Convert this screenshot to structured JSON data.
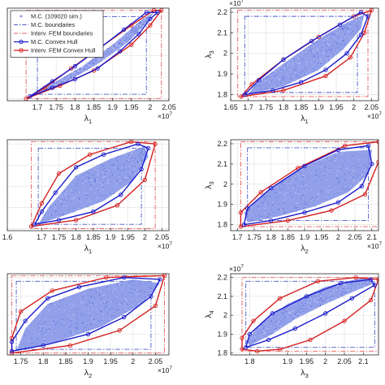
{
  "legend": {
    "placement": "top-left",
    "entries": [
      {
        "label": "M.C. (109020 sim.)",
        "style": "points",
        "color": "#7f8fe6"
      },
      {
        "label": "M.C. boundaries",
        "style": "dash-dot",
        "color": "#4a58c8"
      },
      {
        "label": "Interv. FEM boundaries",
        "style": "dash-dot",
        "color": "#e05a5a"
      },
      {
        "label": "M.C. Convex Hull",
        "style": "line-circle",
        "color": "#1a1acc"
      },
      {
        "label": "Interv. FEM Convex Hull",
        "style": "line-circle",
        "color": "#d42020"
      }
    ]
  },
  "colors": {
    "cloud": "#7f8fe6",
    "mc_hull": "#1a1acc",
    "fem_hull": "#d42020",
    "mc_box": "#4a58c8",
    "fem_box": "#e05a5a",
    "grid": "#e3e3e3"
  },
  "chart_data": [
    {
      "id": "p1",
      "type": "scatter",
      "xlabel": "λ1",
      "ylabel": "",
      "x_exponent": "×10^7",
      "y_exponent": "",
      "xlim": [
        1.62,
        2.05
      ],
      "ylim": [
        1.79,
        2.22
      ],
      "xticks": [
        "1.7",
        "1.75",
        "1.8",
        "1.85",
        "1.9",
        "1.95",
        "2",
        "2.05"
      ],
      "yticks": [],
      "mc_box": [
        1.7,
        1.99,
        1.82,
        2.18
      ],
      "fem_box": [
        1.67,
        2.03,
        1.8,
        2.21
      ],
      "cloud": [
        [
          1.69,
          1.82
        ],
        [
          1.78,
          1.88
        ],
        [
          1.86,
          1.96
        ],
        [
          1.94,
          2.06
        ],
        [
          1.99,
          2.15
        ],
        [
          2.01,
          2.2
        ],
        [
          1.98,
          2.17
        ],
        [
          1.9,
          2.05
        ],
        [
          1.82,
          1.95
        ],
        [
          1.74,
          1.87
        ]
      ],
      "mc_hull": [
        [
          1.68,
          1.81
        ],
        [
          1.74,
          1.85
        ],
        [
          1.8,
          1.89
        ],
        [
          1.86,
          1.94
        ],
        [
          1.92,
          2.02
        ],
        [
          1.97,
          2.1
        ],
        [
          2.0,
          2.17
        ],
        [
          2.02,
          2.2
        ],
        [
          1.99,
          2.2
        ],
        [
          1.93,
          2.12
        ],
        [
          1.87,
          2.04
        ],
        [
          1.8,
          1.95
        ],
        [
          1.74,
          1.88
        ]
      ],
      "fem_hull": [
        [
          1.67,
          1.8
        ],
        [
          1.76,
          1.86
        ],
        [
          1.85,
          1.93
        ],
        [
          1.95,
          2.05
        ],
        [
          2.0,
          2.14
        ],
        [
          2.03,
          2.21
        ],
        [
          2.01,
          2.21
        ],
        [
          1.95,
          2.14
        ],
        [
          1.87,
          2.04
        ],
        [
          1.79,
          1.94
        ],
        [
          1.72,
          1.85
        ]
      ]
    },
    {
      "id": "p2",
      "type": "scatter",
      "xlabel": "λ1",
      "ylabel": "λ3",
      "x_exponent": "×10^7",
      "y_exponent": "×10^7",
      "xlim": [
        1.65,
        2.07
      ],
      "ylim": [
        1.77,
        2.22
      ],
      "xticks": [
        "1.65",
        "1.7",
        "1.75",
        "1.8",
        "1.85",
        "1.9",
        "1.95",
        "2",
        "2.05"
      ],
      "yticks": [
        "1.8",
        "1.9",
        "2",
        "2.1",
        "2.2"
      ],
      "mc_box": [
        1.69,
        2.01,
        1.81,
        2.18
      ],
      "fem_box": [
        1.67,
        2.04,
        1.79,
        2.21
      ],
      "cloud": [
        [
          1.7,
          1.8
        ],
        [
          1.8,
          1.84
        ],
        [
          1.9,
          1.92
        ],
        [
          1.97,
          2.02
        ],
        [
          2.02,
          2.12
        ],
        [
          2.03,
          2.19
        ],
        [
          1.98,
          2.15
        ],
        [
          1.9,
          2.07
        ],
        [
          1.8,
          1.95
        ],
        [
          1.72,
          1.85
        ]
      ],
      "mc_hull": [
        [
          1.69,
          1.8
        ],
        [
          1.77,
          1.82
        ],
        [
          1.85,
          1.86
        ],
        [
          1.92,
          1.92
        ],
        [
          1.98,
          2.0
        ],
        [
          2.02,
          2.09
        ],
        [
          2.04,
          2.18
        ],
        [
          2.02,
          2.2
        ],
        [
          1.96,
          2.14
        ],
        [
          1.88,
          2.06
        ],
        [
          1.8,
          1.97
        ],
        [
          1.73,
          1.87
        ]
      ],
      "fem_hull": [
        [
          1.68,
          1.79
        ],
        [
          1.8,
          1.82
        ],
        [
          1.92,
          1.89
        ],
        [
          1.99,
          1.98
        ],
        [
          2.03,
          2.1
        ],
        [
          2.05,
          2.21
        ],
        [
          2.0,
          2.18
        ],
        [
          1.9,
          2.08
        ],
        [
          1.8,
          1.97
        ],
        [
          1.71,
          1.85
        ]
      ]
    },
    {
      "id": "p3",
      "type": "scatter",
      "xlabel": "λ1",
      "ylabel": "",
      "x_exponent": "×10^7",
      "y_exponent": "",
      "xlim": [
        1.6,
        2.07
      ],
      "ylim": [
        1.79,
        2.22
      ],
      "xticks": [
        "1.6",
        "1.7",
        "1.75",
        "1.8",
        "1.85",
        "1.9",
        "1.95",
        "2",
        "2.05"
      ],
      "yticks": [],
      "mc_box": [
        1.69,
        1.99,
        1.82,
        2.18
      ],
      "fem_box": [
        1.67,
        2.03,
        1.8,
        2.21
      ],
      "cloud": [
        [
          1.69,
          1.82
        ],
        [
          1.78,
          1.87
        ],
        [
          1.88,
          1.93
        ],
        [
          1.96,
          2.02
        ],
        [
          2.01,
          2.14
        ],
        [
          2.0,
          2.19
        ],
        [
          1.9,
          2.13
        ],
        [
          1.8,
          2.05
        ],
        [
          1.72,
          1.9
        ]
      ],
      "mc_hull": [
        [
          1.68,
          1.82
        ],
        [
          1.75,
          1.84
        ],
        [
          1.85,
          1.88
        ],
        [
          1.93,
          1.96
        ],
        [
          1.99,
          2.08
        ],
        [
          2.01,
          2.18
        ],
        [
          1.98,
          2.2
        ],
        [
          1.88,
          2.15
        ],
        [
          1.8,
          2.09
        ],
        [
          1.74,
          1.97
        ],
        [
          1.7,
          1.88
        ]
      ],
      "fem_hull": [
        [
          1.67,
          1.81
        ],
        [
          1.8,
          1.84
        ],
        [
          1.92,
          1.91
        ],
        [
          2.0,
          2.03
        ],
        [
          2.03,
          2.2
        ],
        [
          1.96,
          2.21
        ],
        [
          1.84,
          2.15
        ],
        [
          1.75,
          2.06
        ],
        [
          1.7,
          1.92
        ]
      ]
    },
    {
      "id": "p4",
      "type": "scatter",
      "xlabel": "λ2",
      "ylabel": "λ3",
      "x_exponent": "×10^7",
      "y_exponent": "",
      "xlim": [
        1.68,
        2.12
      ],
      "ylim": [
        1.77,
        2.22
      ],
      "xticks": [
        "1.7",
        "1.75",
        "1.8",
        "1.85",
        "1.9",
        "1.95",
        "2",
        "2.05",
        "2.1"
      ],
      "yticks": [
        "1.8",
        "1.9",
        "2",
        "2.1",
        "2.2"
      ],
      "mc_box": [
        1.73,
        2.09,
        1.82,
        2.18
      ],
      "fem_box": [
        1.71,
        2.12,
        1.79,
        2.21
      ],
      "cloud": [
        [
          1.73,
          1.81
        ],
        [
          1.82,
          1.84
        ],
        [
          1.93,
          1.89
        ],
        [
          2.03,
          1.96
        ],
        [
          2.09,
          2.05
        ],
        [
          2.1,
          2.17
        ],
        [
          2.0,
          2.16
        ],
        [
          1.88,
          2.07
        ],
        [
          1.78,
          1.95
        ],
        [
          1.72,
          1.86
        ]
      ],
      "mc_hull": [
        [
          1.72,
          1.8
        ],
        [
          1.8,
          1.82
        ],
        [
          1.9,
          1.86
        ],
        [
          2.0,
          1.91
        ],
        [
          2.07,
          1.99
        ],
        [
          2.1,
          2.1
        ],
        [
          2.09,
          2.19
        ],
        [
          2.0,
          2.17
        ],
        [
          1.9,
          2.09
        ],
        [
          1.8,
          1.98
        ],
        [
          1.73,
          1.88
        ]
      ],
      "fem_hull": [
        [
          1.71,
          1.79
        ],
        [
          1.85,
          1.82
        ],
        [
          1.98,
          1.87
        ],
        [
          2.08,
          1.95
        ],
        [
          2.12,
          2.11
        ],
        [
          2.12,
          2.21
        ],
        [
          2.02,
          2.19
        ],
        [
          1.88,
          2.08
        ],
        [
          1.77,
          1.96
        ],
        [
          1.71,
          1.86
        ]
      ]
    },
    {
      "id": "p5",
      "type": "scatter",
      "xlabel": "λ2",
      "ylabel": "",
      "x_exponent": "×10^7",
      "y_exponent": "",
      "xlim": [
        1.72,
        2.08
      ],
      "ylim": [
        1.79,
        2.22
      ],
      "xticks": [
        "1.75",
        "1.8",
        "1.85",
        "1.9",
        "1.95",
        "2",
        "2.05"
      ],
      "yticks": [],
      "mc_box": [
        1.74,
        2.04,
        1.82,
        2.18
      ],
      "fem_box": [
        1.73,
        2.07,
        1.8,
        2.21
      ],
      "cloud": [
        [
          1.74,
          1.81
        ],
        [
          1.83,
          1.86
        ],
        [
          1.93,
          1.94
        ],
        [
          2.02,
          2.06
        ],
        [
          2.06,
          2.17
        ],
        [
          2.0,
          2.19
        ],
        [
          1.9,
          2.14
        ],
        [
          1.81,
          2.06
        ],
        [
          1.76,
          1.93
        ]
      ],
      "mc_hull": [
        [
          1.73,
          1.81
        ],
        [
          1.8,
          1.84
        ],
        [
          1.9,
          1.9
        ],
        [
          1.98,
          1.99
        ],
        [
          2.04,
          2.1
        ],
        [
          2.06,
          2.19
        ],
        [
          1.98,
          2.2
        ],
        [
          1.88,
          2.15
        ],
        [
          1.81,
          2.09
        ],
        [
          1.76,
          1.97
        ],
        [
          1.73,
          1.86
        ]
      ],
      "fem_hull": [
        [
          1.73,
          1.8
        ],
        [
          1.86,
          1.84
        ],
        [
          1.97,
          1.92
        ],
        [
          2.05,
          2.05
        ],
        [
          2.07,
          2.21
        ],
        [
          1.94,
          2.2
        ],
        [
          1.82,
          2.13
        ],
        [
          1.75,
          2.02
        ],
        [
          1.73,
          1.88
        ]
      ]
    },
    {
      "id": "p6",
      "type": "scatter",
      "xlabel": "λ3",
      "ylabel": "λ4",
      "x_exponent": "",
      "y_exponent": "×10^7",
      "xlim": [
        1.75,
        2.14
      ],
      "ylim": [
        1.79,
        2.22
      ],
      "xticks": [
        "1.8",
        "1.9",
        "1.95",
        "2",
        "2.05",
        "2.1"
      ],
      "yticks": [
        "1.8",
        "1.9",
        "2",
        "2.1",
        "2.2"
      ],
      "mc_box": [
        1.79,
        2.13,
        1.83,
        2.18
      ],
      "fem_box": [
        1.78,
        2.14,
        1.81,
        2.2
      ],
      "cloud": [
        [
          1.8,
          1.84
        ],
        [
          1.86,
          1.9
        ],
        [
          1.92,
          1.98
        ],
        [
          2.0,
          2.06
        ],
        [
          2.08,
          2.13
        ],
        [
          2.13,
          2.17
        ],
        [
          2.1,
          2.2
        ],
        [
          2.0,
          2.15
        ],
        [
          1.9,
          2.06
        ],
        [
          1.83,
          1.96
        ],
        [
          1.79,
          1.86
        ]
      ],
      "mc_hull": [
        [
          1.79,
          1.83
        ],
        [
          1.85,
          1.87
        ],
        [
          1.92,
          1.93
        ],
        [
          2.0,
          2.01
        ],
        [
          2.07,
          2.09
        ],
        [
          2.13,
          2.16
        ],
        [
          2.12,
          2.19
        ],
        [
          2.04,
          2.17
        ],
        [
          1.95,
          2.1
        ],
        [
          1.86,
          2.01
        ],
        [
          1.8,
          1.9
        ]
      ],
      "fem_hull": [
        [
          1.78,
          1.82
        ],
        [
          1.82,
          1.81
        ],
        [
          1.88,
          1.82
        ],
        [
          1.96,
          1.87
        ],
        [
          2.05,
          1.97
        ],
        [
          2.12,
          2.08
        ],
        [
          2.14,
          2.19
        ],
        [
          2.08,
          2.2
        ],
        [
          1.98,
          2.18
        ],
        [
          1.88,
          2.09
        ],
        [
          1.81,
          1.97
        ],
        [
          1.78,
          1.88
        ]
      ]
    }
  ]
}
